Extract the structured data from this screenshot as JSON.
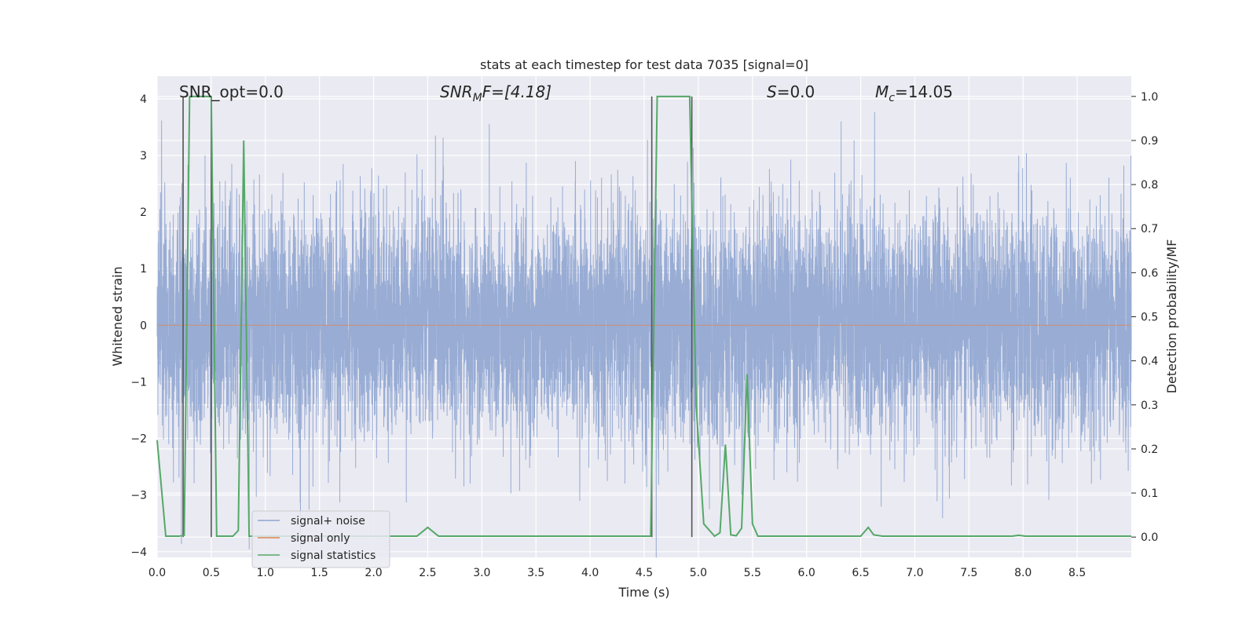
{
  "chart_data": {
    "type": "line",
    "title": "stats at each timestep for test data 7035 [signal=0]",
    "xlabel": "Time (s)",
    "ylabel": "Whitened strain",
    "y2label": "Detection probability/MF",
    "xlim": [
      0.0,
      9.0
    ],
    "ylim": [
      -4.1,
      4.4
    ],
    "y2lim": [
      -0.046,
      1.046
    ],
    "xticks": [
      "0.0",
      "0.5",
      "1.0",
      "1.5",
      "2.0",
      "2.5",
      "3.0",
      "3.5",
      "4.0",
      "4.5",
      "5.0",
      "5.5",
      "6.0",
      "6.5",
      "7.0",
      "7.5",
      "8.0",
      "8.5"
    ],
    "xtick_values": [
      0,
      0.5,
      1,
      1.5,
      2,
      2.5,
      3,
      3.5,
      4,
      4.5,
      5,
      5.5,
      6,
      6.5,
      7,
      7.5,
      8,
      8.5
    ],
    "yticks": [
      "4",
      "3",
      "2",
      "1",
      "0",
      "−1",
      "−2",
      "−3",
      "−4"
    ],
    "ytick_values": [
      4,
      3,
      2,
      1,
      0,
      -1,
      -2,
      -3,
      -4
    ],
    "y2ticks": [
      "1.0",
      "0.9",
      "0.8",
      "0.7",
      "0.6",
      "0.5",
      "0.4",
      "0.3",
      "0.2",
      "0.1",
      "0.0"
    ],
    "y2tick_values": [
      1.0,
      0.9,
      0.8,
      0.7,
      0.6,
      0.5,
      0.4,
      0.3,
      0.2,
      0.1,
      0.0
    ],
    "annotations": {
      "snr_opt": "SNR_opt=0.0",
      "snr_mf_base": "SNR",
      "snr_mf_sub": "M",
      "snr_mf_rest": "F=[4.18]",
      "s_base": "S",
      "s_rest": "=0.0",
      "mc_base": "M",
      "mc_sub": "c",
      "mc_rest": "=14.05"
    },
    "series": [
      {
        "name": "signal+ noise",
        "color": "#8fa5d0",
        "noise_sigma": 1.0,
        "peak_min": -4.1,
        "peak_max": 4.0,
        "samples": 9216
      },
      {
        "name": "signal only",
        "color": "#dd8452",
        "values_constant": 0.0
      },
      {
        "name": "signal statistics",
        "color": "#55a868",
        "x": [
          0.0,
          0.08,
          0.2,
          0.25,
          0.3,
          0.5,
          0.55,
          0.7,
          0.75,
          0.8,
          0.85,
          0.9,
          2.4,
          2.5,
          2.6,
          4.5,
          4.56,
          4.62,
          4.92,
          4.98,
          5.05,
          5.15,
          5.2,
          5.25,
          5.3,
          5.35,
          5.4,
          5.45,
          5.5,
          5.55,
          5.62,
          6.5,
          6.57,
          6.62,
          6.7,
          7.9,
          7.96,
          8.02,
          9.0
        ],
        "y": [
          0.22,
          0.002,
          0.002,
          0.004,
          1.0,
          1.0,
          0.002,
          0.002,
          0.015,
          0.9,
          0.002,
          0.002,
          0.002,
          0.022,
          0.002,
          0.002,
          0.002,
          1.0,
          1.0,
          0.3,
          0.03,
          0.002,
          0.01,
          0.21,
          0.005,
          0.003,
          0.02,
          0.37,
          0.03,
          0.002,
          0.002,
          0.002,
          0.022,
          0.005,
          0.002,
          0.002,
          0.004,
          0.002,
          0.002
        ]
      }
    ],
    "vlines": [
      0.24,
      0.5,
      4.57,
      4.94
    ],
    "vline_color": "#555555",
    "legend": {
      "placement": "lower-left",
      "entries": [
        "signal+ noise",
        "signal only",
        "signal statistics"
      ]
    }
  }
}
